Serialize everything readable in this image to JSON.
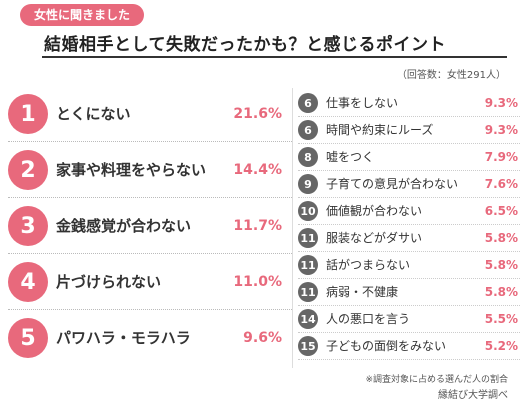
{
  "tag": "女性に聞きました",
  "title": "結婚相手として失敗だったかも？と感じるポイント",
  "respondents": "（回答数：女性291人）",
  "note": "※調査対象に占める選んだ人の割合",
  "source": "縁結び大学調べ",
  "colors": {
    "accent": "#e8697c",
    "secondary_badge": "#666666"
  },
  "chart_data": {
    "type": "table",
    "title": "結婚相手として失敗だったかも？と感じるポイント",
    "unit": "%",
    "items": [
      {
        "rank": "1",
        "label": "とくにない",
        "pct": "21.6%",
        "value": 21.6
      },
      {
        "rank": "2",
        "label": "家事や料理をやらない",
        "pct": "14.4%",
        "value": 14.4
      },
      {
        "rank": "3",
        "label": "金銭感覚が合わない",
        "pct": "11.7%",
        "value": 11.7
      },
      {
        "rank": "4",
        "label": "片づけられない",
        "pct": "11.0%",
        "value": 11.0
      },
      {
        "rank": "5",
        "label": "パワハラ・モラハラ",
        "pct": "9.6%",
        "value": 9.6
      },
      {
        "rank": "6",
        "label": "仕事をしない",
        "pct": "9.3%",
        "value": 9.3
      },
      {
        "rank": "6",
        "label": "時間や約束にルーズ",
        "pct": "9.3%",
        "value": 9.3
      },
      {
        "rank": "8",
        "label": "嘘をつく",
        "pct": "7.9%",
        "value": 7.9
      },
      {
        "rank": "9",
        "label": "子育ての意見が合わない",
        "pct": "7.6%",
        "value": 7.6
      },
      {
        "rank": "10",
        "label": "価値観が合わない",
        "pct": "6.5%",
        "value": 6.5
      },
      {
        "rank": "11",
        "label": "服装などがダサい",
        "pct": "5.8%",
        "value": 5.8
      },
      {
        "rank": "11",
        "label": "話がつまらない",
        "pct": "5.8%",
        "value": 5.8
      },
      {
        "rank": "11",
        "label": "病弱・不健康",
        "pct": "5.8%",
        "value": 5.8
      },
      {
        "rank": "14",
        "label": "人の悪口を言う",
        "pct": "5.5%",
        "value": 5.5
      },
      {
        "rank": "15",
        "label": "子どもの面倒をみない",
        "pct": "5.2%",
        "value": 5.2
      }
    ]
  }
}
